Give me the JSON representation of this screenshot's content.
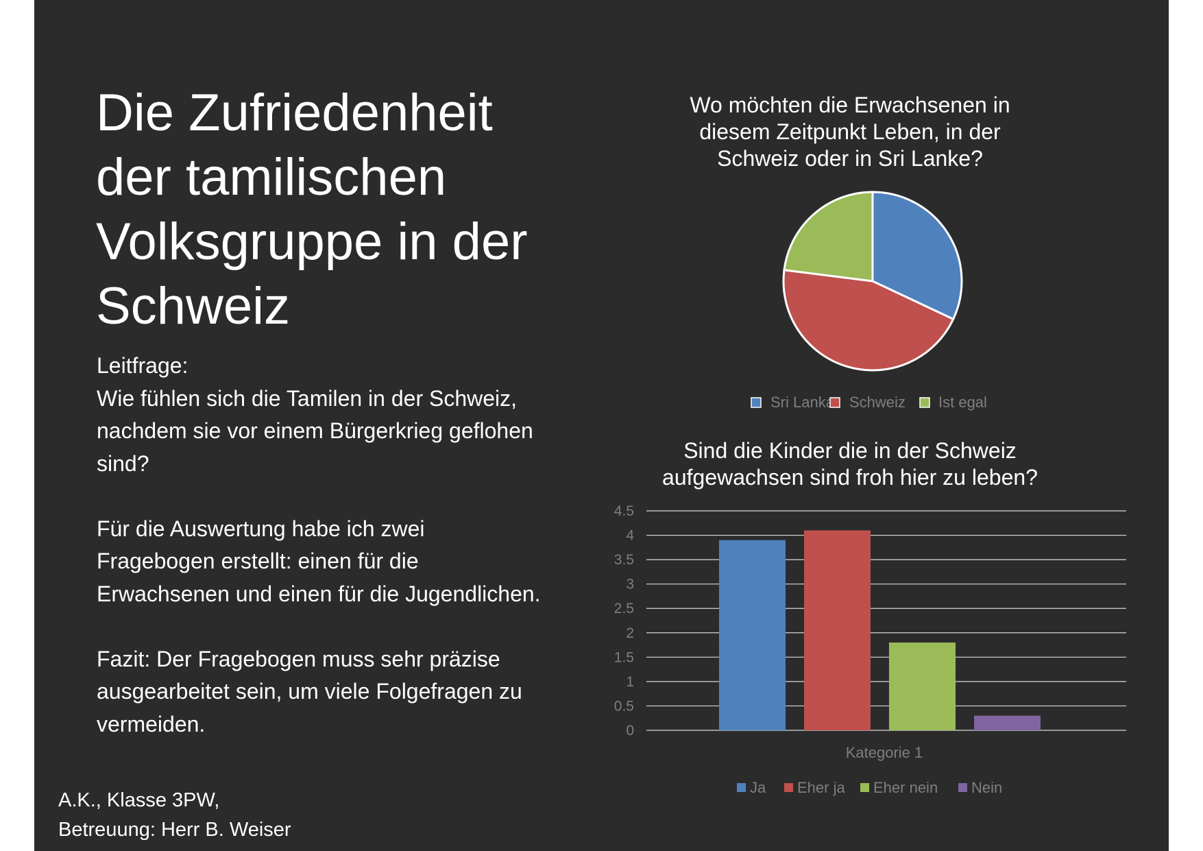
{
  "title": "Die Zufriedenheit\nder tamilischen\nVolksgruppe  in der\nSchweiz",
  "leitfrage_label": "Leitfrage:",
  "leitfrage_lines": [
    "Wie fühlen sich die Tamilen in der Schweiz,",
    "nachdem sie vor einem Bürgerkrieg geflohen",
    "sind?"
  ],
  "auswertung_lines": [
    "Für die Auswertung habe ich zwei",
    "Fragebogen erstellt: einen für die",
    "Erwachsenen und einen für die Jugendlichen."
  ],
  "fazit_lines": [
    "Fazit: Der Fragebogen muss sehr präzise",
    "ausgearbeitet sein, um viele Folgefragen zu",
    "vermeiden."
  ],
  "footer": {
    "line1": "A.K., Klasse 3PW,",
    "line2": "Betreuung: Herr B. Weiser"
  },
  "chart_data": [
    {
      "type": "pie",
      "title": "Wo möchten die Erwachsenen in\ndiesem Zeitpunkt Leben, in der\nSchweiz oder in Sri Lanke?",
      "categories": [
        "Sri Lanka",
        "Schweiz",
        "Ist egal"
      ],
      "values": [
        32,
        45,
        23
      ],
      "colors": [
        "#4f81bd",
        "#c0504d",
        "#9bbb59"
      ],
      "legend_position": "bottom"
    },
    {
      "type": "bar",
      "title": "Sind die Kinder die in der Schweiz\naufgewachsen sind froh hier zu leben?",
      "categories": [
        "Kategorie 1"
      ],
      "series": [
        {
          "name": "Ja",
          "values": [
            3.9
          ],
          "color": "#4f81bd"
        },
        {
          "name": "Eher ja",
          "values": [
            4.1
          ],
          "color": "#c0504d"
        },
        {
          "name": "Eher nein",
          "values": [
            1.8
          ],
          "color": "#9bbb59"
        },
        {
          "name": "Nein",
          "values": [
            0.3
          ],
          "color": "#8064a2"
        }
      ],
      "ylim": [
        0,
        4.5
      ],
      "yticks": [
        "0",
        "0.5",
        "1",
        "1.5",
        "2",
        "2.5",
        "3",
        "3.5",
        "4",
        "4.5"
      ],
      "grid": true,
      "legend_position": "bottom"
    }
  ]
}
